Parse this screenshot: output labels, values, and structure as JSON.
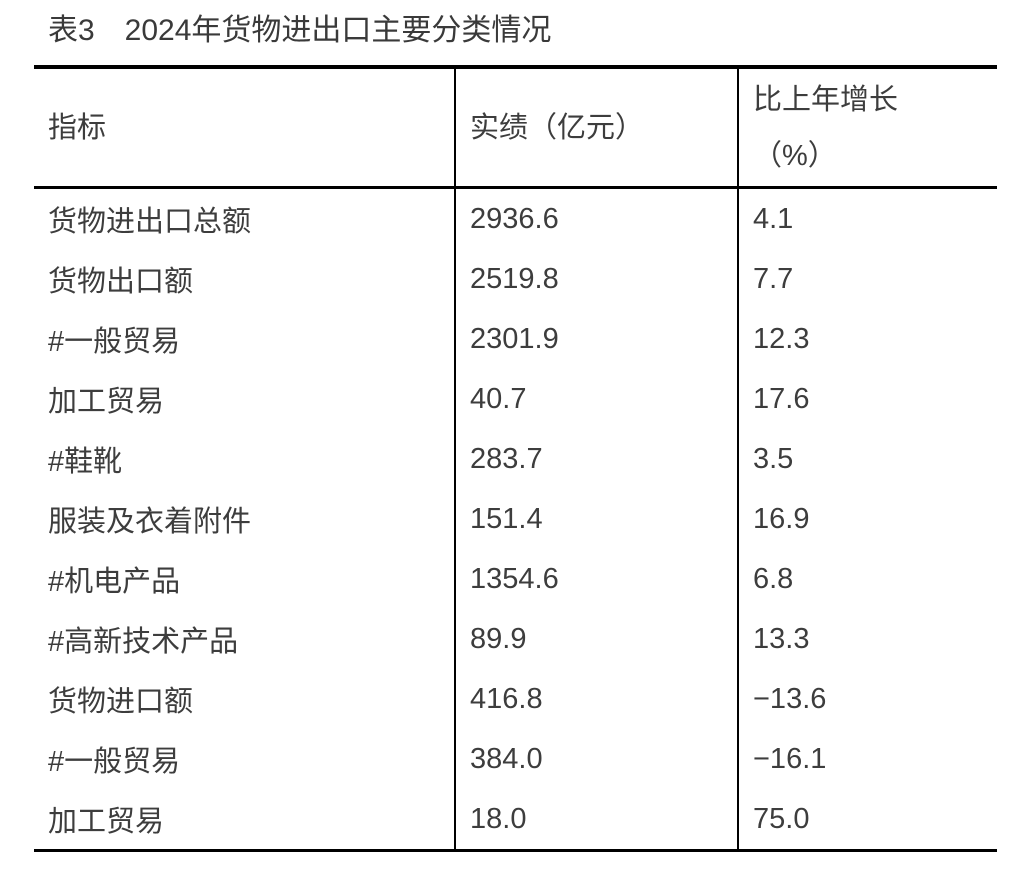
{
  "title": "表3　2024年货物进出口主要分类情况",
  "table": {
    "headers": {
      "indicator": "指标",
      "value": "实绩（亿元）",
      "growth_line1": "比上年增长",
      "growth_line2": "（%）"
    },
    "rows": [
      {
        "indicator": "货物进出口总额",
        "value": "2936.6",
        "growth": "4.1"
      },
      {
        "indicator": "货物出口额",
        "value": "2519.8",
        "growth": "7.7"
      },
      {
        "indicator": "#一般贸易",
        "value": "2301.9",
        "growth": "12.3"
      },
      {
        "indicator": "加工贸易",
        "value": "40.7",
        "growth": "17.6"
      },
      {
        "indicator": "#鞋靴",
        "value": "283.7",
        "growth": "3.5"
      },
      {
        "indicator": "服装及衣着附件",
        "value": "151.4",
        "growth": "16.9"
      },
      {
        "indicator": "#机电产品",
        "value": "1354.6",
        "growth": "6.8"
      },
      {
        "indicator": "#高新技术产品",
        "value": "89.9",
        "growth": "13.3"
      },
      {
        "indicator": "货物进口额",
        "value": "416.8",
        "growth": "−13.6"
      },
      {
        "indicator": "#一般贸易",
        "value": "384.0",
        "growth": "−16.1"
      },
      {
        "indicator": "加工贸易",
        "value": "18.0",
        "growth": "75.0"
      }
    ]
  },
  "colors": {
    "text": "#3d3d3d",
    "border": "#000000",
    "background": "#ffffff"
  }
}
